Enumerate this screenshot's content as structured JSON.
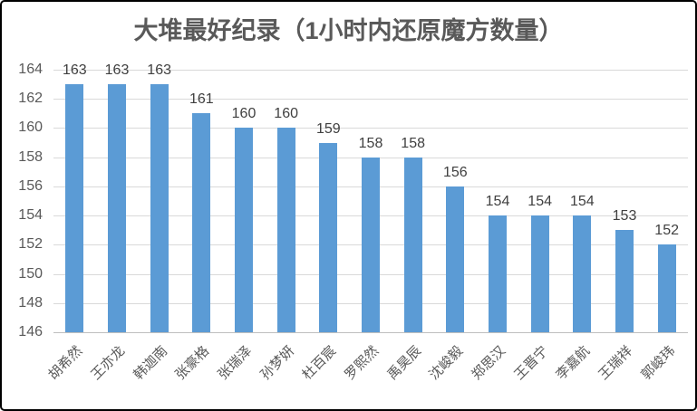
{
  "chart_data": {
    "type": "bar",
    "title": "大堆最好纪录（1小时内还原魔方数量）",
    "categories": [
      "胡希然",
      "王亦龙",
      "韩迦南",
      "张豪格",
      "张瑞泽",
      "孙梦妍",
      "杜百宸",
      "罗熙然",
      "禹昊辰",
      "沈峻毅",
      "郑思汉",
      "王晋宁",
      "李嘉航",
      "王瑞祥",
      "郭峻玮"
    ],
    "values": [
      163,
      163,
      163,
      161,
      160,
      160,
      159,
      158,
      158,
      156,
      154,
      154,
      154,
      153,
      152
    ],
    "xlabel": "",
    "ylabel": "",
    "ylim": [
      146,
      164
    ],
    "ytick_step": 2,
    "yticks": [
      146,
      148,
      150,
      152,
      154,
      156,
      158,
      160,
      162,
      164
    ],
    "grid": true,
    "legend": "none",
    "data_labels": true,
    "colors": {
      "bar": "#5B9BD5",
      "gridline": "#D9D9D9",
      "axis_line": "#BFBFBF",
      "title": "#595959",
      "tick_label": "#595959",
      "data_label": "#404040",
      "category_label": "#595959",
      "frame_border": "#000000",
      "background": "#FFFFFF"
    }
  }
}
